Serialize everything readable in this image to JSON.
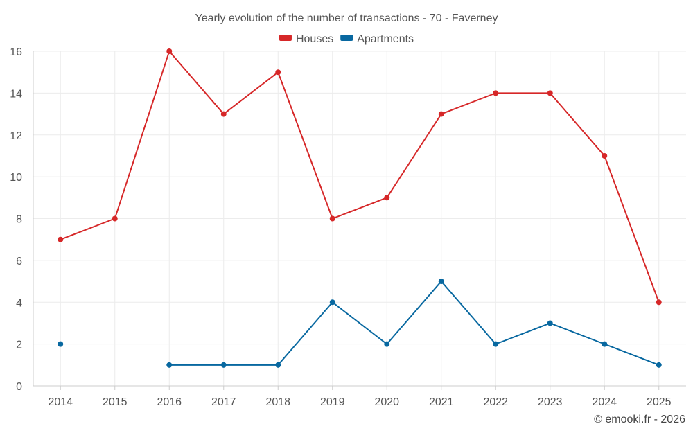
{
  "chart_data": {
    "type": "line",
    "title": "Yearly evolution of the number of transactions - 70 - Faverney",
    "xlabel": "",
    "ylabel": "",
    "categories": [
      "2014",
      "2015",
      "2016",
      "2017",
      "2018",
      "2019",
      "2020",
      "2021",
      "2022",
      "2023",
      "2024",
      "2025"
    ],
    "ylim": [
      0,
      16
    ],
    "yticks": [
      0,
      2,
      4,
      6,
      8,
      10,
      12,
      14,
      16
    ],
    "grid": true,
    "legend": "top-center",
    "series": [
      {
        "name": "Houses",
        "color": "#d62728",
        "values": [
          7,
          8,
          16,
          13,
          15,
          8,
          9,
          13,
          14,
          14,
          11,
          4
        ]
      },
      {
        "name": "Apartments",
        "color": "#0868a0",
        "values": [
          2,
          null,
          1,
          1,
          1,
          4,
          2,
          5,
          2,
          3,
          2,
          1
        ]
      }
    ]
  },
  "credit": "© emooki.fr - 2026"
}
